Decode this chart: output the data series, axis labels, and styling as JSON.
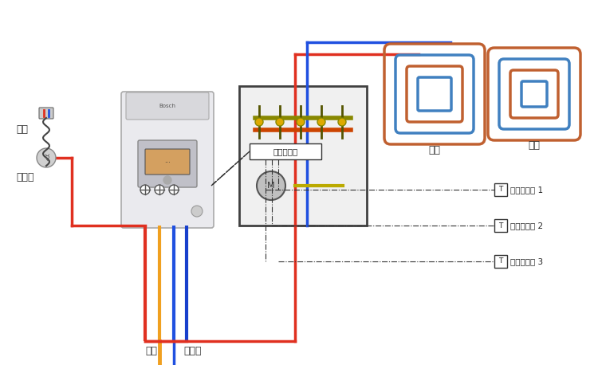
{
  "title": "",
  "bg_color": "#ffffff",
  "labels": {
    "shower": "淋浴器",
    "hot_water": "热水",
    "gas": "燃气",
    "tap_water": "自来水",
    "central_controller": "中央控制器",
    "room_ctrl_1": "室温控制器 1",
    "room_ctrl_2": "室温控制器 2",
    "room_ctrl_3": "室温控制器 3",
    "underfloor1": "地暖",
    "underfloor2": "地暖"
  },
  "colors": {
    "red": "#e03020",
    "blue": "#2050e0",
    "orange": "#f0a020",
    "dark_blue": "#1030b0",
    "boiler_body": "#e8e8ec",
    "boiler_shadow": "#c8c8cc",
    "box_border": "#404040",
    "controller_box": "#303030",
    "dash_line": "#303030",
    "warm_pipe": "#c06030",
    "cool_pipe": "#4080c0"
  },
  "fonts": {
    "label_size": 9,
    "title_size": 11
  }
}
